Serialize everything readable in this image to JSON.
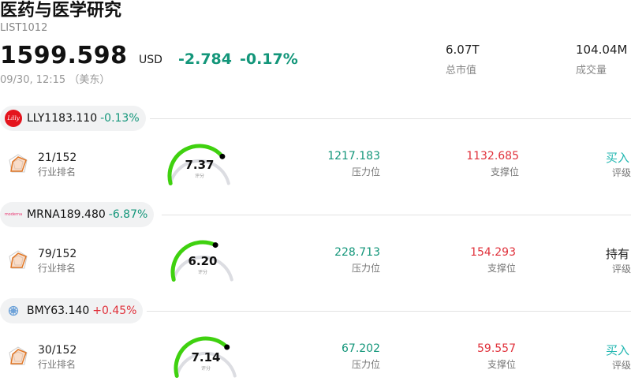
{
  "header": {
    "title": "医药与医学研究",
    "code": "LIST1012",
    "price": "1599.598",
    "currency": "USD",
    "change": "-2.784",
    "change_pct": "-0.17%",
    "time": "09/30, 12:15 （美东）"
  },
  "stats": [
    {
      "value": "6.07T",
      "label": "总市值"
    },
    {
      "value": "104.04M",
      "label": "成交量"
    }
  ],
  "labels": {
    "rank": "行业排名",
    "resistance": "压力位",
    "support": "支撑位",
    "rating": "评级",
    "gauge_sub": "评分"
  },
  "stocks": [
    {
      "symbol": "LLY",
      "price": "1183.110",
      "change": "-0.13%",
      "direction": "down",
      "rank": "21/152",
      "score": "7.37",
      "score_value": 7.37,
      "resistance": "1217.183",
      "support": "1132.685",
      "rating": "买入",
      "logo_text": "Lilly",
      "logo_color": "#e4141d"
    },
    {
      "symbol": "MRNA",
      "price": "189.480",
      "change": "-6.87%",
      "direction": "down",
      "rank": "79/152",
      "score": "6.20",
      "score_value": 6.2,
      "resistance": "228.713",
      "support": "154.293",
      "rating": "持有",
      "logo_text": "moderna",
      "logo_color": "#e8336f"
    },
    {
      "symbol": "BMY",
      "price": "63.140",
      "change": "+0.45%",
      "direction": "up",
      "rank": "30/152",
      "score": "7.14",
      "score_value": 7.14,
      "resistance": "67.202",
      "support": "59.557",
      "rating": "买入",
      "logo_text": "",
      "logo_color": "#6aa0d8"
    }
  ],
  "colors": {
    "up": "#e0303a",
    "down": "#13967a",
    "gauge_fill": "#3fd10f",
    "gauge_track": "#dcdde2",
    "buy": "#1fb6b0"
  }
}
